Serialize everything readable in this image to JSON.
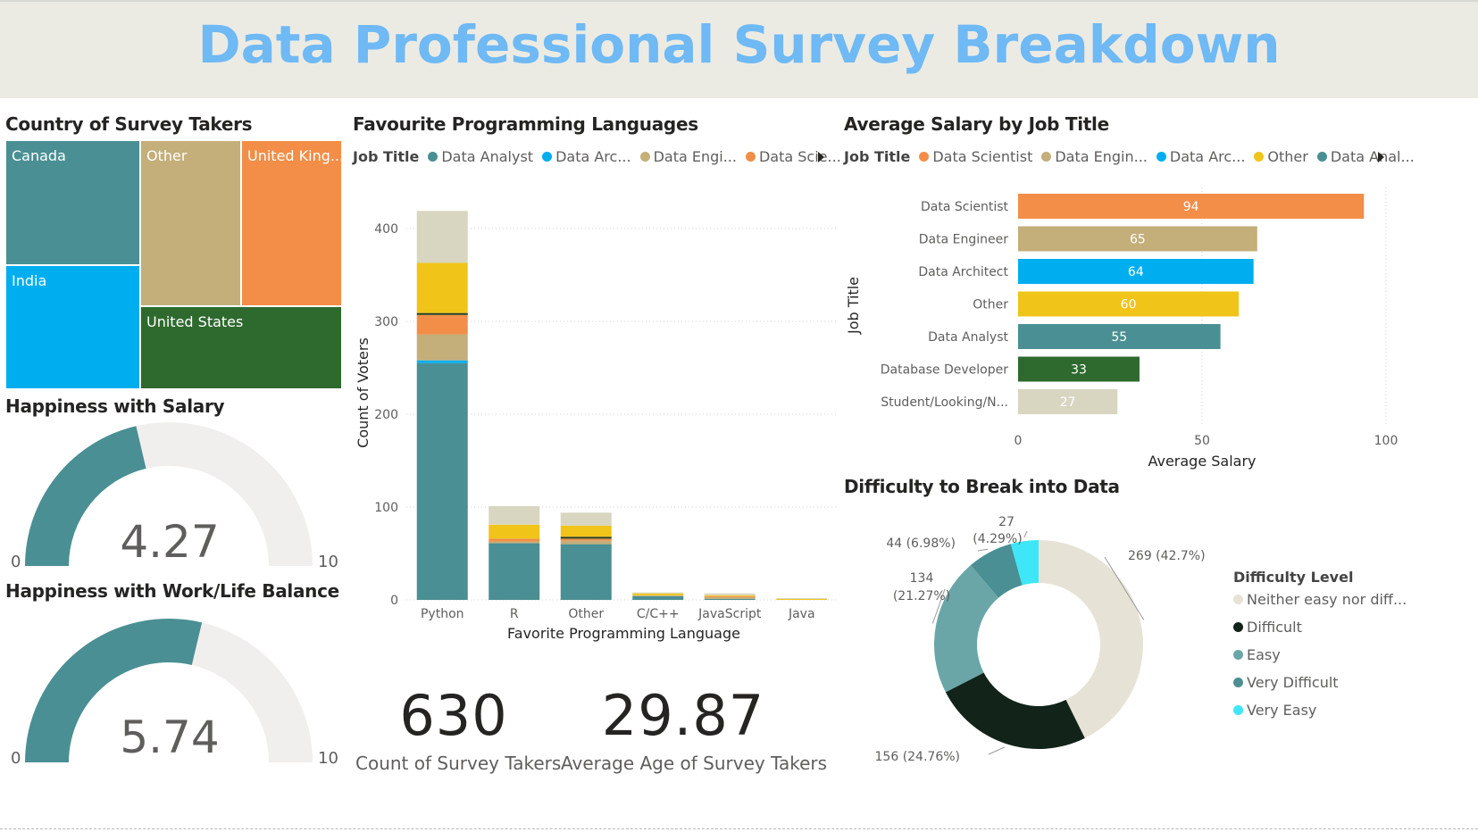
{
  "header": {
    "title": "Data Professional Survey Breakdown"
  },
  "country": {
    "title": "Country of Survey Takers",
    "tiles": [
      {
        "label": "Canada",
        "color": "#4a8f93"
      },
      {
        "label": "Other",
        "color": "#c4ae7a"
      },
      {
        "label": "United King...",
        "color": "#f28e47"
      },
      {
        "label": "India",
        "color": "#00aef0"
      },
      {
        "label": "United States",
        "color": "#2e6a2e"
      }
    ]
  },
  "salary_happy": {
    "title": "Happiness with Salary",
    "value": "4.27",
    "min": "0",
    "max": "10",
    "fraction": 0.427
  },
  "wlb_happy": {
    "title": "Happiness with Work/Life Balance",
    "value": "5.74",
    "min": "0",
    "max": "10",
    "fraction": 0.574
  },
  "languages": {
    "title": "Favourite Programming Languages",
    "legend_title": "Job Title",
    "legend": [
      {
        "label": "Data Analyst",
        "color": "#4a8f93"
      },
      {
        "label": "Data Arc...",
        "color": "#00aef0"
      },
      {
        "label": "Data Engi...",
        "color": "#c4ae7a"
      },
      {
        "label": "Data Scie...",
        "color": "#f28e47"
      }
    ]
  },
  "salary_by_title": {
    "title": "Average Salary by Job Title",
    "legend_title": "Job Title",
    "legend": [
      {
        "label": "Data Scientist",
        "color": "#f28e47"
      },
      {
        "label": "Data Engin...",
        "color": "#c4ae7a"
      },
      {
        "label": "Data Arc...",
        "color": "#00aef0"
      },
      {
        "label": "Other",
        "color": "#f0c419"
      },
      {
        "label": "Data Anal...",
        "color": "#4a8f93"
      }
    ]
  },
  "difficulty": {
    "title": "Difficulty to Break into Data",
    "legend_title": "Difficulty Level"
  },
  "kpis": {
    "count_value": "630",
    "count_label": "Count of Survey Takers",
    "age_value": "29.87",
    "age_label": "Average Age of Survey Takers"
  },
  "chart_data": [
    {
      "type": "bar",
      "stacked": true,
      "xlabel": "Favorite Programming Language",
      "ylabel": "Count of Voters",
      "ylim": [
        0,
        420
      ],
      "yticks": [
        0,
        100,
        200,
        300,
        400
      ],
      "categories": [
        "Python",
        "R",
        "Other",
        "C/C++",
        "JavaScript",
        "Java"
      ],
      "series": [
        {
          "name": "Data Analyst",
          "color": "#4a8f93",
          "values": [
            255,
            61,
            60,
            4,
            1,
            0
          ]
        },
        {
          "name": "Data Architect",
          "color": "#00aef0",
          "values": [
            3,
            0,
            0,
            0,
            0,
            0
          ]
        },
        {
          "name": "Data Engineer",
          "color": "#c4ae7a",
          "values": [
            28,
            2,
            4,
            1,
            2,
            0
          ]
        },
        {
          "name": "Data Scientist",
          "color": "#f28e47",
          "values": [
            21,
            3,
            2,
            0,
            1,
            0
          ]
        },
        {
          "color": "#1f3d1f",
          "values": [
            2,
            0,
            2,
            0,
            0,
            0
          ]
        },
        {
          "color": "#f0c419",
          "values": [
            54,
            15,
            12,
            2,
            1,
            1
          ]
        },
        {
          "color": "#d8d6c0",
          "values": [
            56,
            20,
            14,
            1,
            2,
            1
          ]
        }
      ]
    },
    {
      "type": "bar",
      "orientation": "horizontal",
      "xlabel": "Average Salary",
      "ylabel": "Job Title",
      "xlim": [
        0,
        100
      ],
      "xticks": [
        "0",
        "50",
        "100"
      ],
      "categories": [
        "Data Scientist",
        "Data Engineer",
        "Data Architect",
        "Other",
        "Data Analyst",
        "Database Developer",
        "Student/Looking/N..."
      ],
      "values": [
        94,
        65,
        64,
        60,
        55,
        33,
        27
      ],
      "colors": [
        "#f28e47",
        "#c4ae7a",
        "#00aef0",
        "#f0c419",
        "#4a8f93",
        "#2e6a2e",
        "#d8d6c0"
      ]
    },
    {
      "type": "pie",
      "donut": true,
      "slices": [
        {
          "name": "Neither easy nor diff...",
          "value": 269,
          "label": "269 (42.7%)",
          "color": "#e6e3d6"
        },
        {
          "name": "Difficult",
          "value": 156,
          "label": "156 (24.76%)",
          "color": "#12241a"
        },
        {
          "name": "Easy",
          "value": 134,
          "label": "134 (21.27%)",
          "color": "#6aa6a8"
        },
        {
          "name": "Very Difficult",
          "value": 44,
          "label": "44 (6.98%)",
          "color": "#4a8f93"
        },
        {
          "name": "Very Easy",
          "value": 27,
          "label": "27 (4.29%)",
          "color": "#3ee6f7"
        }
      ]
    }
  ]
}
